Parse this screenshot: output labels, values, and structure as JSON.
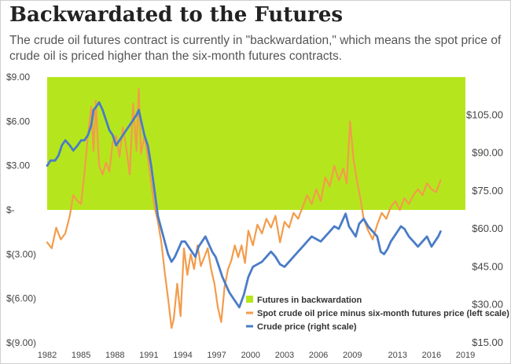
{
  "title": "Backwardated to the Futures",
  "subtitle": "The crude oil futures contract is currently in \"backwardation,\" which means the spot price of crude oil is priced higher than the six-month futures contracts.",
  "colors": {
    "backwardation_fill": "#b5e61d",
    "spread_line": "#f39c4b",
    "crude_line": "#4a7cc7",
    "text": "#444444"
  },
  "chart_data": {
    "type": "line",
    "title": "Backwardated to the Futures",
    "x_ticks": [
      "1982",
      "1985",
      "1988",
      "1991",
      "1994",
      "1997",
      "2000",
      "2003",
      "2006",
      "2009",
      "2013",
      "2016",
      "2019"
    ],
    "x_range": [
      1982,
      2019
    ],
    "left_axis": {
      "ticks": [
        "$9.00",
        "$6.00",
        "$3.00",
        "$-",
        "$(3.00)",
        "$(6.00)",
        "$(9.00)"
      ],
      "tick_values": [
        9,
        6,
        3,
        0,
        -3,
        -6,
        -9
      ],
      "range": [
        -9,
        9
      ]
    },
    "right_axis": {
      "ticks": [
        "$105.00",
        "$90.00",
        "$75.00",
        "$60.00",
        "$45.00",
        "$30.00",
        "$15.00"
      ],
      "tick_values": [
        105,
        90,
        75,
        60,
        45,
        30,
        15
      ],
      "range": [
        15,
        120
      ]
    },
    "shaded_region": {
      "label": "Futures in backwardation",
      "y_from": 0,
      "y_to": 9
    },
    "series": [
      {
        "name": "Spot crude oil price minus six-month futures price (left scale)",
        "axis": "left",
        "x": [
          1982,
          1982.4,
          1982.8,
          1983.2,
          1983.6,
          1984,
          1984.3,
          1984.7,
          1985,
          1985.3,
          1985.6,
          1985.9,
          1986.1,
          1986.3,
          1986.6,
          1986.9,
          1987.2,
          1987.5,
          1987.8,
          1988.1,
          1988.4,
          1988.7,
          1989,
          1989.3,
          1989.6,
          1989.9,
          1990.1,
          1990.3,
          1990.6,
          1990.9,
          1991.2,
          1991.5,
          1991.8,
          1992.1,
          1992.4,
          1992.7,
          1993,
          1993.2,
          1993.5,
          1993.8,
          1994.1,
          1994.4,
          1994.7,
          1995,
          1995.3,
          1995.6,
          1995.9,
          1996.2,
          1996.5,
          1996.8,
          1997.1,
          1997.4,
          1997.7,
          1998,
          1998.3,
          1998.6,
          1998.9,
          1999.2,
          1999.5,
          1999.8,
          2000.2,
          2000.6,
          2001,
          2001.4,
          2001.8,
          2002.2,
          2002.6,
          2003,
          2003.4,
          2003.8,
          2004.2,
          2004.6,
          2005,
          2005.4,
          2005.8,
          2006.2,
          2006.6,
          2007,
          2007.4,
          2007.8,
          2008.2,
          2008.5,
          2008.8,
          2009.1,
          2009.4,
          2009.7,
          2010,
          2010.4,
          2010.8,
          2011.2,
          2011.6,
          2012,
          2012.4,
          2012.8,
          2013.2,
          2013.6,
          2014,
          2014.4,
          2014.8,
          2015.2,
          2015.6,
          2016,
          2016.4,
          2016.8
        ],
        "y": [
          -2.2,
          -2.6,
          -1.2,
          -2.0,
          -1.6,
          -0.4,
          1.0,
          0.6,
          0.4,
          2.5,
          5.0,
          7.0,
          4.0,
          7.4,
          3.0,
          2.4,
          3.2,
          2.6,
          4.6,
          5.0,
          3.6,
          5.6,
          4.2,
          2.4,
          7.2,
          4.0,
          8.2,
          3.8,
          5.0,
          3.6,
          1.8,
          0.2,
          -0.8,
          -2.2,
          -4.2,
          -6.0,
          -8.0,
          -7.4,
          -5.0,
          -7.2,
          -2.6,
          -4.4,
          -3.0,
          -4.0,
          -2.4,
          -3.8,
          -3.2,
          -2.6,
          -4.0,
          -5.0,
          -6.6,
          -7.6,
          -5.2,
          -4.0,
          -3.4,
          -2.4,
          -3.2,
          -2.4,
          -3.6,
          -1.4,
          -2.4,
          -1.0,
          -1.6,
          -0.6,
          -1.2,
          -0.4,
          -2.2,
          -0.8,
          -1.2,
          -0.2,
          -0.6,
          0.2,
          1.0,
          0.4,
          1.4,
          0.6,
          2.2,
          1.6,
          3.0,
          2.0,
          2.8,
          1.8,
          6.0,
          3.4,
          2.0,
          0.8,
          -0.6,
          -1.4,
          -2.0,
          -1.0,
          -0.2,
          -0.6,
          0.2,
          0.6,
          0.0,
          0.8,
          0.4,
          1.0,
          1.4,
          1.0,
          1.8,
          1.4,
          1.2,
          2.0
        ]
      },
      {
        "name": "Crude price (right scale)",
        "axis": "right",
        "x": [
          1982,
          1982.3,
          1982.7,
          1983,
          1983.3,
          1983.6,
          1984,
          1984.3,
          1984.7,
          1985,
          1985.3,
          1985.6,
          1985.9,
          1986.1,
          1986.3,
          1986.6,
          1986.9,
          1987.2,
          1987.5,
          1987.8,
          1988.1,
          1988.4,
          1988.7,
          1989,
          1989.3,
          1989.6,
          1989.9,
          1990.1,
          1990.3,
          1990.6,
          1990.9,
          1991.2,
          1991.5,
          1991.8,
          1992.1,
          1992.4,
          1992.7,
          1993,
          1993.3,
          1993.6,
          1993.9,
          1994.2,
          1994.5,
          1994.8,
          1995.1,
          1995.4,
          1995.7,
          1996,
          1996.3,
          1996.6,
          1996.9,
          1997.2,
          1997.5,
          1997.8,
          1998.1,
          1998.4,
          1998.7,
          1999,
          1999.4,
          1999.8,
          2000.2,
          2000.6,
          2001,
          2001.4,
          2001.8,
          2002.2,
          2002.6,
          2003,
          2003.4,
          2003.8,
          2004.2,
          2004.6,
          2005,
          2005.4,
          2005.8,
          2006.2,
          2006.6,
          2007,
          2007.4,
          2007.8,
          2008.1,
          2008.4,
          2008.7,
          2009,
          2009.3,
          2009.6,
          2010,
          2010.4,
          2010.8,
          2011.2,
          2011.5,
          2011.8,
          2012.1,
          2012.4,
          2012.7,
          2013,
          2013.3,
          2013.6,
          2014,
          2014.4,
          2014.8,
          2015.2,
          2015.6,
          2016,
          2016.3,
          2016.6,
          2016.8
        ],
        "y": [
          85,
          87,
          87,
          89,
          93,
          95,
          93,
          91,
          93,
          95,
          95,
          97,
          101,
          107,
          108,
          110,
          107,
          103,
          99,
          97,
          93,
          95,
          97,
          99,
          101,
          103,
          105,
          107,
          103,
          97,
          93,
          85,
          75,
          65,
          60,
          55,
          50,
          47,
          49,
          52,
          55,
          55,
          53,
          51,
          49,
          53,
          55,
          57,
          54,
          51,
          49,
          45,
          41,
          38,
          35,
          33,
          31,
          29,
          34,
          41,
          45,
          46,
          47,
          49,
          51,
          49,
          46,
          45,
          47,
          49,
          51,
          53,
          55,
          57,
          56,
          55,
          57,
          59,
          61,
          60,
          63,
          66,
          61,
          59,
          57,
          62,
          64,
          61,
          59,
          57,
          51,
          50,
          52,
          55,
          57,
          59,
          61,
          60,
          57,
          55,
          53,
          55,
          57,
          53,
          55,
          57,
          59
        ]
      }
    ],
    "legend": {
      "position": "bottom-right",
      "entries": [
        "Futures in backwardation",
        "Spot crude oil price minus six-month futures price (left scale)",
        "Crude price (right scale)"
      ]
    }
  }
}
